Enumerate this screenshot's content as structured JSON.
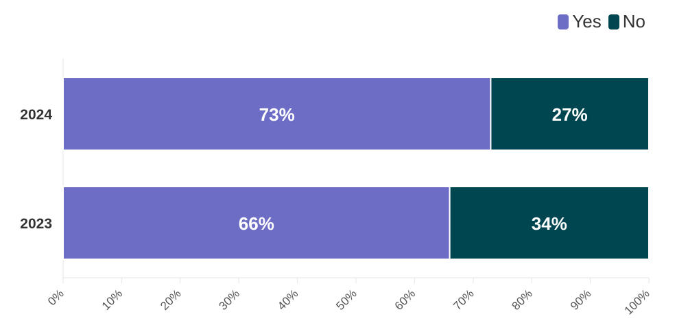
{
  "chart_data": {
    "type": "bar",
    "orientation": "horizontal",
    "stacked": true,
    "categories": [
      "2024",
      "2023"
    ],
    "series": [
      {
        "name": "Yes",
        "values": [
          73,
          66
        ],
        "color": "#6e6dc6"
      },
      {
        "name": "No",
        "values": [
          27,
          34
        ],
        "color": "#004651"
      }
    ],
    "data_labels": [
      [
        "73%",
        "66%"
      ],
      [
        "27%",
        "34%"
      ]
    ],
    "x_ticks": [
      "0%",
      "10%",
      "20%",
      "30%",
      "40%",
      "50%",
      "60%",
      "70%",
      "80%",
      "90%",
      "100%"
    ],
    "xlim": [
      0,
      100
    ],
    "legend_position": "top-right",
    "grid": false
  }
}
